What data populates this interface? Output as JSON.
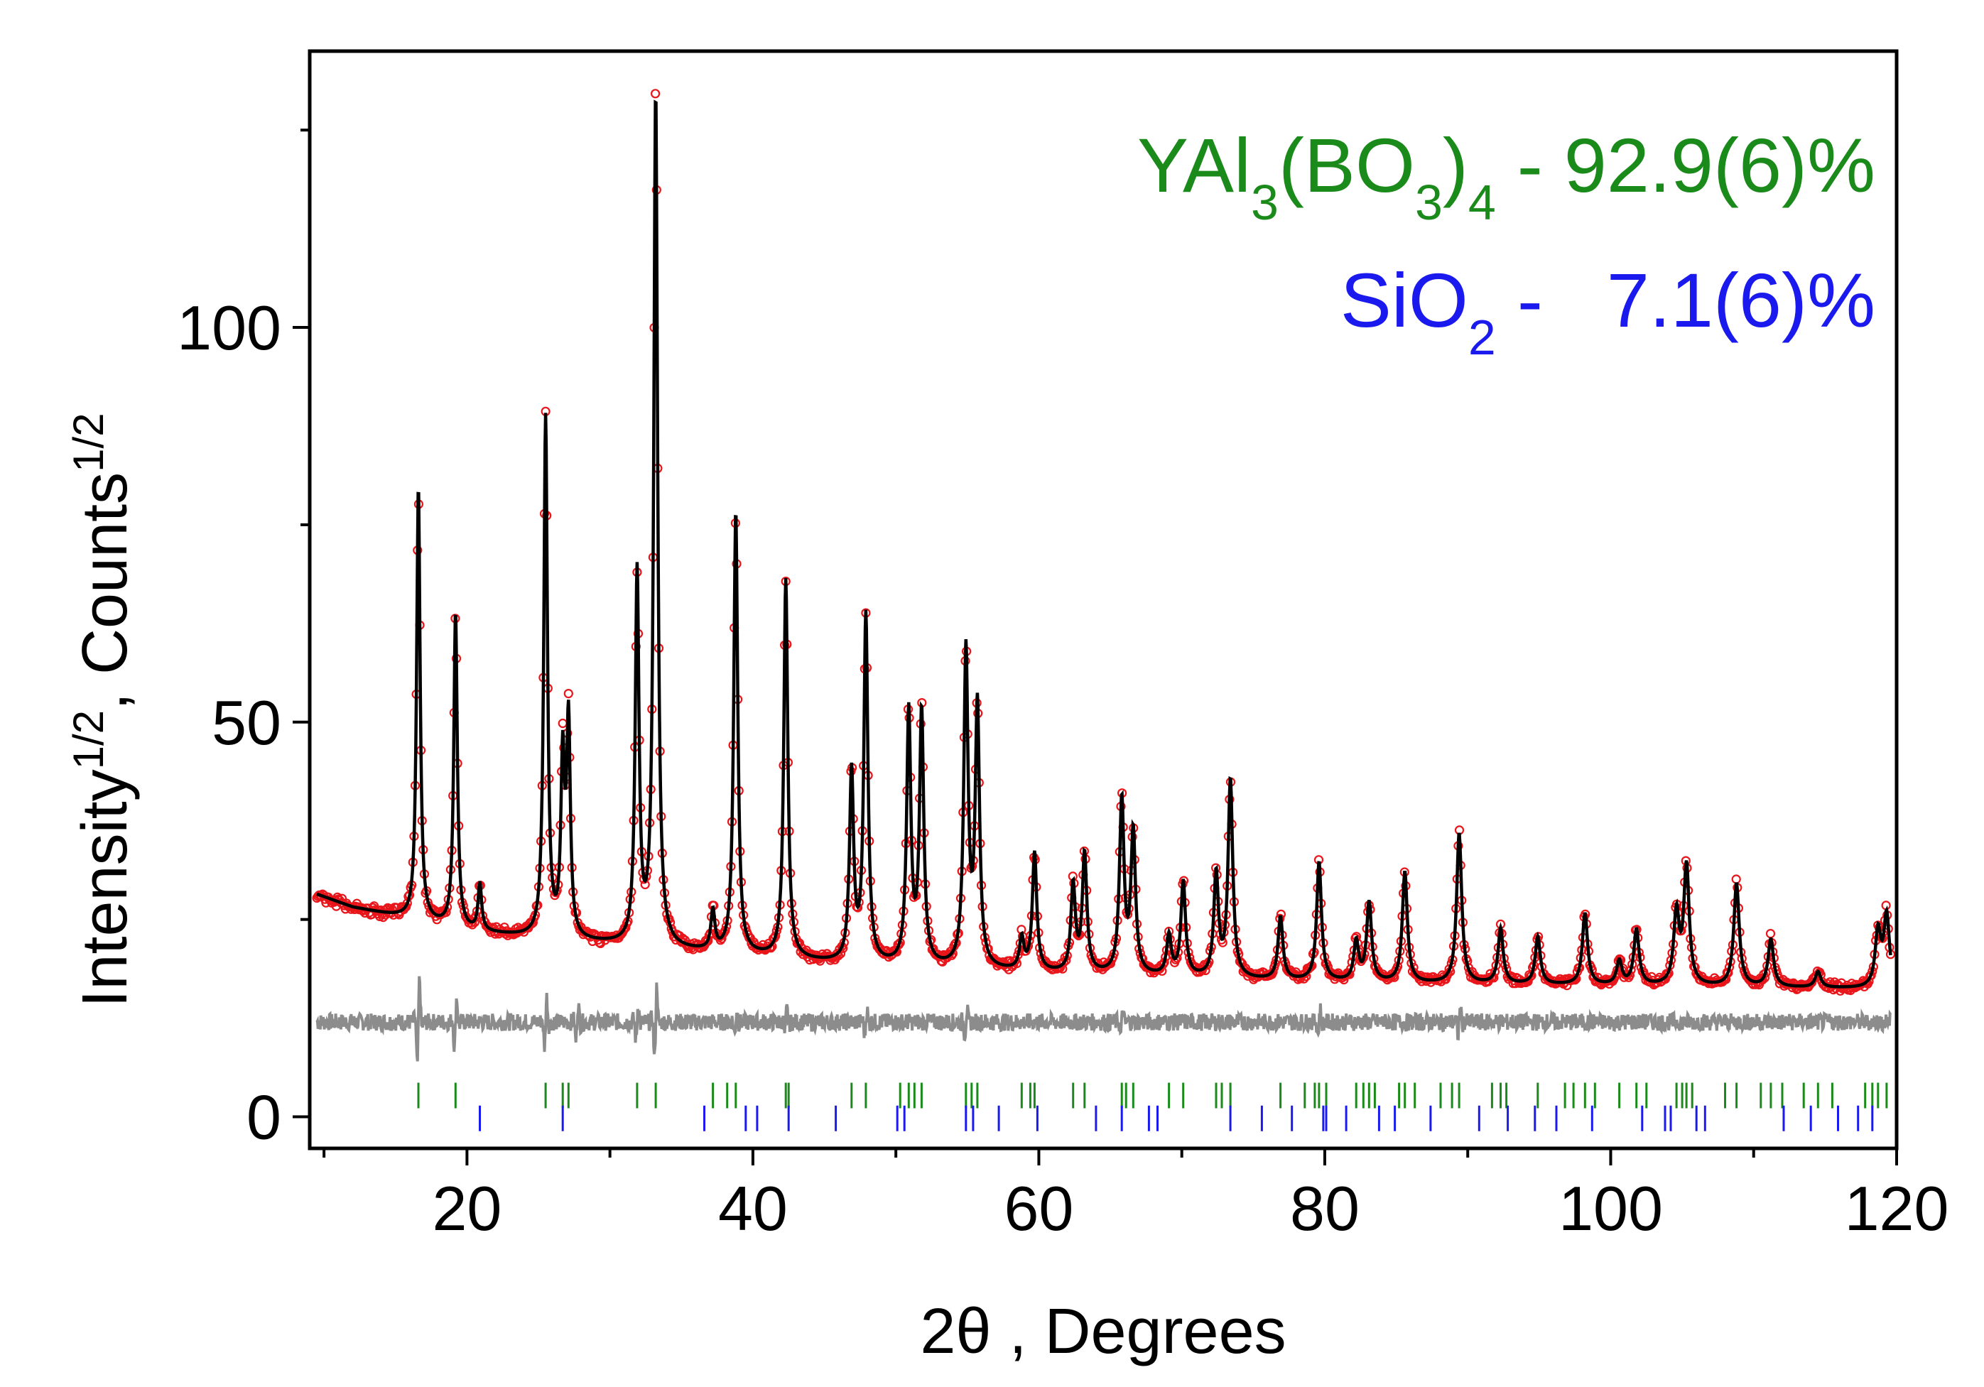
{
  "chart_data": {
    "type": "line",
    "title": "",
    "xlabel": "2θ , Degrees",
    "ylabel": "Intensity^1/2 , Counts^1/2",
    "ylabel_parts": {
      "a": "Intensity",
      "sup1": "1/2",
      "b": ", Counts",
      "sup2": "1/2"
    },
    "xlim": [
      9,
      120
    ],
    "ylim": [
      -4,
      135
    ],
    "xticks": [
      20,
      40,
      60,
      80,
      100,
      120
    ],
    "xtick_labels": [
      "20",
      "40",
      "60",
      "80",
      "100",
      "120"
    ],
    "yticks": [
      0,
      50,
      100
    ],
    "ytick_labels": [
      "0",
      "50",
      "100"
    ],
    "grid": false,
    "annotations": [
      {
        "phase": "YAl3(BO3)4",
        "parts": {
          "a": "YAl",
          "s1": "3",
          "b": "(BO",
          "s2": "3",
          "c": ")",
          "s3": "4"
        },
        "label": " - 92.9(6)%",
        "color": "#1a8a1a"
      },
      {
        "phase": "SiO2",
        "parts": {
          "a": "SiO",
          "s1": "2"
        },
        "label": " -   7.1(6)%",
        "color": "#1a1aee"
      }
    ],
    "background": {
      "x": [
        9,
        12,
        16,
        20,
        25,
        30,
        35,
        40,
        45,
        50,
        55,
        60,
        65,
        70,
        75,
        80,
        85,
        90,
        95,
        100,
        105,
        110,
        115,
        120
      ],
      "y": [
        28.5,
        26.5,
        25,
        23.5,
        22.5,
        21.8,
        21,
        20.3,
        19.5,
        19,
        18.6,
        18.2,
        17.9,
        17.6,
        17.3,
        17.1,
        16.9,
        16.8,
        16.7,
        16.6,
        16.5,
        16.4,
        16.3,
        16.2
      ]
    },
    "peaks": [
      {
        "x": 16.6,
        "h": 55
      },
      {
        "x": 19.2,
        "h": 40
      },
      {
        "x": 20.9,
        "h": 6
      },
      {
        "x": 25.5,
        "h": 66
      },
      {
        "x": 26.7,
        "h": 22
      },
      {
        "x": 27.1,
        "h": 27
      },
      {
        "x": 31.9,
        "h": 47
      },
      {
        "x": 33.2,
        "h": 108
      },
      {
        "x": 37.2,
        "h": 5
      },
      {
        "x": 38.8,
        "h": 56
      },
      {
        "x": 42.3,
        "h": 48
      },
      {
        "x": 46.9,
        "h": 24
      },
      {
        "x": 47.9,
        "h": 44
      },
      {
        "x": 50.9,
        "h": 32
      },
      {
        "x": 51.8,
        "h": 32
      },
      {
        "x": 54.9,
        "h": 40
      },
      {
        "x": 55.7,
        "h": 33
      },
      {
        "x": 58.8,
        "h": 4
      },
      {
        "x": 59.7,
        "h": 15
      },
      {
        "x": 62.4,
        "h": 11
      },
      {
        "x": 63.2,
        "h": 15
      },
      {
        "x": 65.8,
        "h": 22
      },
      {
        "x": 66.6,
        "h": 18
      },
      {
        "x": 69.1,
        "h": 5
      },
      {
        "x": 70.1,
        "h": 12
      },
      {
        "x": 72.4,
        "h": 13
      },
      {
        "x": 73.4,
        "h": 25
      },
      {
        "x": 76.9,
        "h": 8
      },
      {
        "x": 79.6,
        "h": 15
      },
      {
        "x": 82.2,
        "h": 5
      },
      {
        "x": 83.1,
        "h": 10
      },
      {
        "x": 85.6,
        "h": 14
      },
      {
        "x": 89.4,
        "h": 19
      },
      {
        "x": 92.3,
        "h": 7
      },
      {
        "x": 94.9,
        "h": 6
      },
      {
        "x": 98.2,
        "h": 9
      },
      {
        "x": 100.6,
        "h": 3
      },
      {
        "x": 101.8,
        "h": 7
      },
      {
        "x": 104.6,
        "h": 9
      },
      {
        "x": 105.3,
        "h": 15
      },
      {
        "x": 108.8,
        "h": 13
      },
      {
        "x": 111.2,
        "h": 6
      },
      {
        "x": 114.5,
        "h": 2
      },
      {
        "x": 118.7,
        "h": 7
      },
      {
        "x": 119.3,
        "h": 9
      }
    ],
    "difference_baseline": 12,
    "difference_spikes": [
      {
        "x": 16.6,
        "a": 7
      },
      {
        "x": 19.2,
        "a": 4
      },
      {
        "x": 25.5,
        "a": 4
      },
      {
        "x": 27.7,
        "a": 3
      },
      {
        "x": 31.9,
        "a": 3
      },
      {
        "x": 33.2,
        "a": 6
      },
      {
        "x": 38.8,
        "a": 2
      },
      {
        "x": 42.3,
        "a": 2
      },
      {
        "x": 47.9,
        "a": 2
      },
      {
        "x": 54.9,
        "a": 2
      },
      {
        "x": 65.8,
        "a": 2
      },
      {
        "x": 79.6,
        "a": 2
      },
      {
        "x": 89.4,
        "a": 2
      }
    ],
    "series": [
      {
        "name": "observed",
        "marker": "circle",
        "color": "#e8161b"
      },
      {
        "name": "calculated",
        "color": "#000000"
      },
      {
        "name": "difference",
        "color": "#888888"
      },
      {
        "name": "YAl3(BO3)4 Bragg positions",
        "color": "#1a8a1a",
        "y": 2.7,
        "x": [
          16.6,
          19.2,
          25.5,
          26.7,
          27.1,
          31.9,
          33.2,
          37.2,
          38.2,
          38.8,
          42.3,
          42.5,
          46.9,
          47.9,
          50.3,
          50.9,
          51.3,
          51.8,
          54.9,
          55.3,
          55.7,
          58.8,
          59.4,
          59.7,
          62.4,
          63.2,
          65.8,
          66.1,
          66.6,
          69.1,
          70.1,
          72.4,
          72.8,
          73.4,
          76.9,
          78.6,
          79.3,
          79.6,
          80.1,
          82.2,
          82.7,
          83.1,
          83.5,
          85.2,
          85.6,
          86.3,
          88.1,
          88.9,
          89.4,
          91.7,
          92.3,
          92.7,
          94.9,
          96.8,
          97.4,
          98.2,
          98.9,
          100.6,
          101.8,
          102.5,
          104.6,
          105.0,
          105.3,
          105.7,
          108.0,
          108.8,
          110.5,
          111.2,
          112.0,
          113.5,
          114.5,
          115.5,
          117.8,
          118.3,
          118.7,
          119.3
        ]
      },
      {
        "name": "SiO2 Bragg positions",
        "color": "#1a1aee",
        "y": -0.2,
        "x": [
          20.9,
          26.7,
          36.6,
          39.5,
          40.3,
          42.5,
          45.8,
          50.1,
          50.6,
          54.9,
          55.4,
          57.2,
          59.9,
          64.0,
          65.8,
          67.7,
          68.3,
          73.4,
          75.6,
          77.7,
          79.9,
          80.1,
          81.5,
          83.8,
          84.9,
          87.4,
          90.8,
          92.8,
          94.7,
          96.2,
          98.7,
          102.2,
          103.8,
          104.2,
          106.0,
          106.6,
          112.1,
          114.0,
          115.9,
          117.3,
          118.3,
          120.0
        ]
      }
    ]
  }
}
